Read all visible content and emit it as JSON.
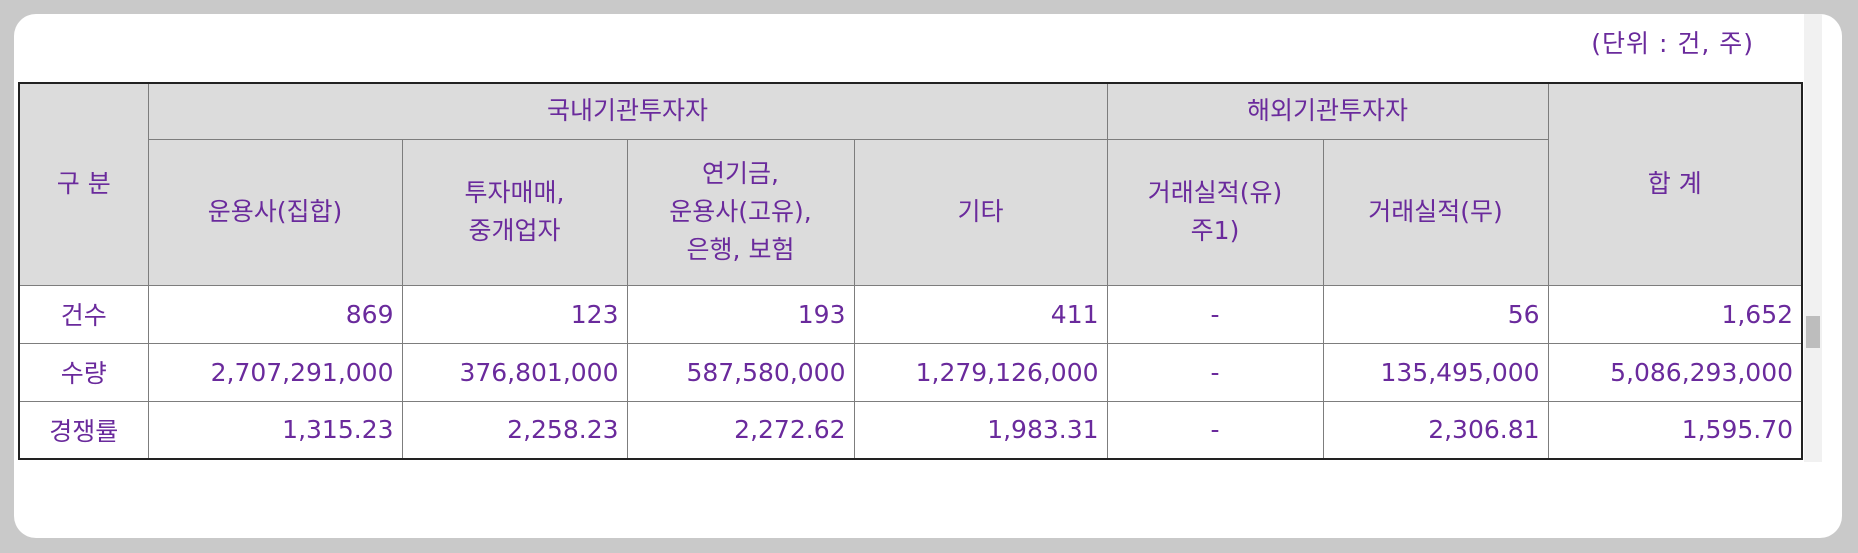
{
  "unit_label": "(단위 : 건, 주)",
  "headers": {
    "category": "구 분",
    "domestic": "국내기관투자자",
    "foreign": "해외기관투자자",
    "total": "합 계",
    "sub": [
      "운용사(집합)",
      "투자매매,\n중개업자",
      "연기금,\n운용사(고유),\n은행, 보험",
      "기타",
      "거래실적(유)\n주1)",
      "거래실적(무)"
    ]
  },
  "rows": [
    {
      "label": "건수",
      "values": [
        "869",
        "123",
        "193",
        "411",
        "-",
        "56",
        "1,652"
      ]
    },
    {
      "label": "수량",
      "values": [
        "2,707,291,000",
        "376,801,000",
        "587,580,000",
        "1,279,126,000",
        "-",
        "135,495,000",
        "5,086,293,000"
      ]
    },
    {
      "label": "경쟁률",
      "values": [
        "1,315.23",
        "2,258.23",
        "2,272.62",
        "1,983.31",
        "-",
        "2,306.81",
        "1,595.70"
      ]
    }
  ],
  "colors": {
    "text": "#6a2a9c",
    "header_bg": "#dcdcdc",
    "page_bg": "#c9c9c9"
  }
}
